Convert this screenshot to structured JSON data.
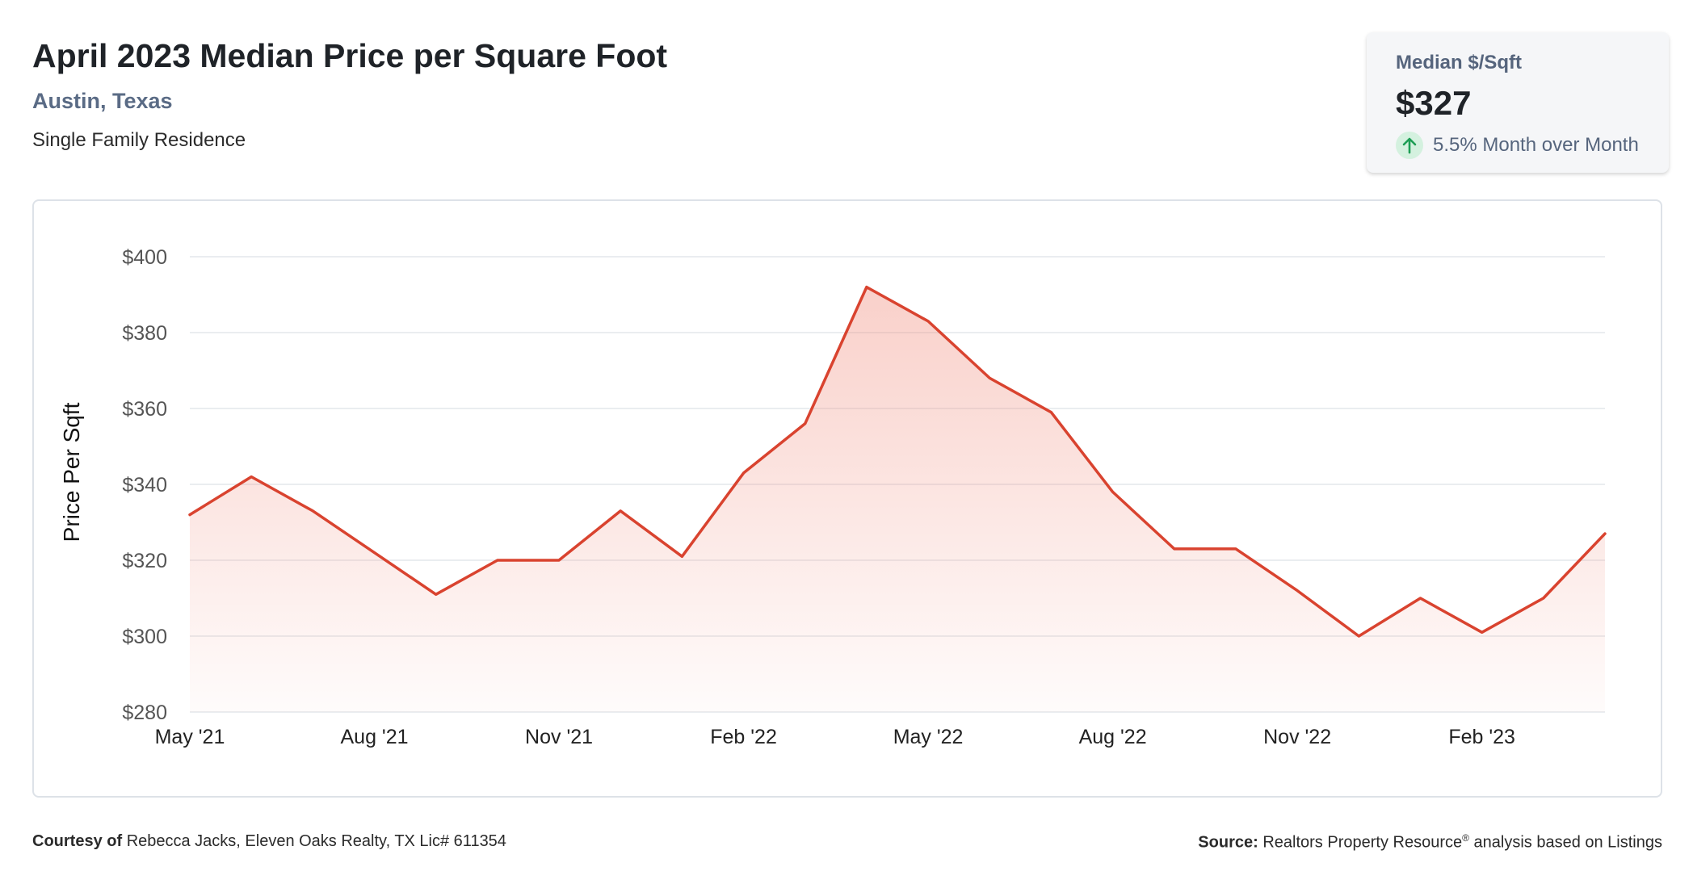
{
  "header": {
    "title": "April 2023 Median Price per Square Foot",
    "location": "Austin, Texas",
    "property_type": "Single Family Residence"
  },
  "stat_card": {
    "label": "Median $/Sqft",
    "value": "$327",
    "change_text": "5.5% Month over Month",
    "change_icon": "arrow-up-icon",
    "change_color": "#1e9e55"
  },
  "footer": {
    "courtesy_label": "Courtesy of",
    "courtesy_text": "Rebecca Jacks, Eleven Oaks Realty, TX Lic# 611354",
    "source_label": "Source:",
    "source_text_1": "Realtors Property Resource",
    "source_mark": "®",
    "source_text_2": " analysis based on Listings"
  },
  "chart_data": {
    "type": "area",
    "ylabel": "Price Per Sqft",
    "xlabel": "",
    "ylim": [
      280,
      400
    ],
    "yticks": [
      400,
      380,
      360,
      340,
      320,
      300,
      280
    ],
    "ytick_labels": [
      "$400",
      "$380",
      "$360",
      "$340",
      "$320",
      "$300",
      "$280"
    ],
    "x": [
      "2021-05",
      "2021-06",
      "2021-07",
      "2021-08",
      "2021-09",
      "2021-10",
      "2021-11",
      "2021-12",
      "2022-01",
      "2022-02",
      "2022-03",
      "2022-04",
      "2022-05",
      "2022-06",
      "2022-07",
      "2022-08",
      "2022-09",
      "2022-10",
      "2022-11",
      "2022-12",
      "2023-01",
      "2023-02",
      "2023-03",
      "2023-04"
    ],
    "values": [
      332,
      342,
      333,
      322,
      311,
      320,
      320,
      333,
      321,
      343,
      356,
      392,
      383,
      368,
      359,
      338,
      323,
      323,
      312,
      300,
      310,
      301,
      310,
      327
    ],
    "xtick_labels": [
      {
        "index": 0,
        "label": "May '21"
      },
      {
        "index": 3,
        "label": "Aug '21"
      },
      {
        "index": 6,
        "label": "Nov '21"
      },
      {
        "index": 9,
        "label": "Feb '22"
      },
      {
        "index": 12,
        "label": "May '22"
      },
      {
        "index": 15,
        "label": "Aug '22"
      },
      {
        "index": 18,
        "label": "Nov '22"
      },
      {
        "index": 21,
        "label": "Feb '23"
      }
    ],
    "grid": true,
    "line_color": "#d9432f",
    "fill_color": "#f08a7a"
  }
}
